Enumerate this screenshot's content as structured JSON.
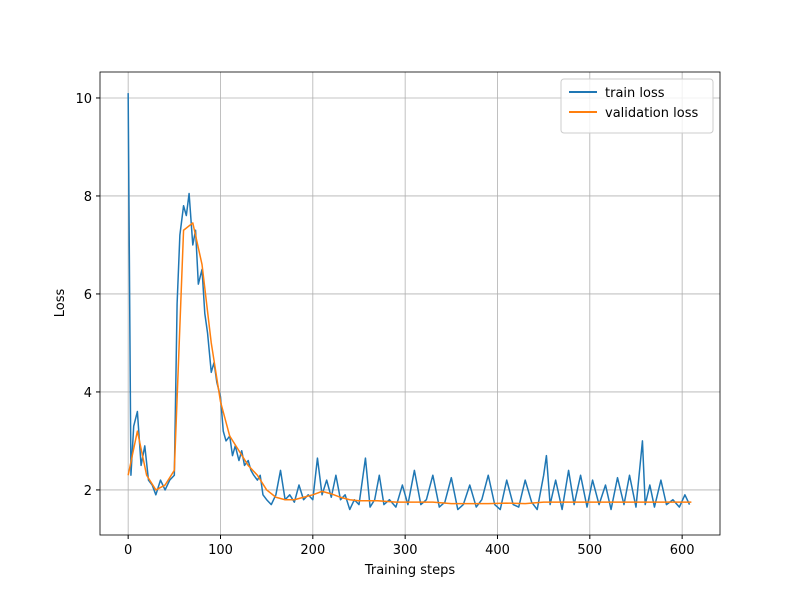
{
  "chart_data": {
    "type": "line",
    "xlabel": "Training steps",
    "ylabel": "Loss",
    "xlim": [
      -30.5,
      641
    ],
    "ylim": [
      1.08,
      10.53
    ],
    "xticks": [
      0,
      100,
      200,
      300,
      400,
      500,
      600
    ],
    "yticks": [
      2,
      4,
      6,
      8,
      10
    ],
    "grid": true,
    "legend": "upper right",
    "series": [
      {
        "name": "train loss",
        "color": "#1f77b4",
        "x": [
          0,
          3,
          6,
          10,
          14,
          18,
          22,
          26,
          30,
          35,
          40,
          45,
          50,
          53,
          56,
          60,
          63,
          66,
          70,
          73,
          76,
          80,
          83,
          86,
          90,
          93,
          96,
          100,
          103,
          106,
          110,
          113,
          116,
          120,
          123,
          126,
          130,
          133,
          136,
          140,
          143,
          146,
          150,
          155,
          160,
          165,
          170,
          175,
          180,
          185,
          190,
          195,
          200,
          205,
          210,
          215,
          220,
          225,
          230,
          235,
          240,
          245,
          250,
          257,
          262,
          267,
          272,
          277,
          283,
          290,
          297,
          303,
          310,
          317,
          323,
          330,
          337,
          343,
          350,
          357,
          363,
          370,
          377,
          383,
          390,
          397,
          403,
          410,
          417,
          423,
          430,
          437,
          443,
          450,
          453,
          457,
          463,
          470,
          477,
          483,
          490,
          497,
          503,
          510,
          517,
          523,
          530,
          537,
          543,
          550,
          557,
          560,
          565,
          570,
          577,
          583,
          590,
          597,
          603,
          608
        ],
        "values": [
          10.1,
          2.3,
          3.3,
          3.6,
          2.5,
          2.9,
          2.2,
          2.1,
          1.9,
          2.2,
          2.0,
          2.2,
          2.3,
          5.8,
          7.2,
          7.8,
          7.6,
          8.05,
          7.0,
          7.3,
          6.2,
          6.5,
          5.6,
          5.2,
          4.4,
          4.6,
          4.2,
          3.9,
          3.2,
          3.0,
          3.1,
          2.7,
          2.9,
          2.6,
          2.8,
          2.5,
          2.6,
          2.4,
          2.3,
          2.2,
          2.3,
          1.9,
          1.8,
          1.7,
          1.9,
          2.4,
          1.8,
          1.9,
          1.75,
          2.1,
          1.8,
          1.9,
          1.8,
          2.65,
          1.9,
          2.2,
          1.85,
          2.3,
          1.8,
          1.9,
          1.6,
          1.8,
          1.7,
          2.65,
          1.65,
          1.8,
          2.3,
          1.7,
          1.8,
          1.65,
          2.1,
          1.7,
          2.4,
          1.7,
          1.8,
          2.3,
          1.65,
          1.75,
          2.25,
          1.6,
          1.7,
          2.1,
          1.65,
          1.8,
          2.3,
          1.7,
          1.6,
          2.2,
          1.7,
          1.65,
          2.2,
          1.75,
          1.6,
          2.3,
          2.7,
          1.7,
          2.2,
          1.6,
          2.4,
          1.7,
          2.3,
          1.65,
          2.2,
          1.7,
          2.1,
          1.6,
          2.25,
          1.7,
          2.3,
          1.65,
          3.0,
          1.7,
          2.1,
          1.65,
          2.2,
          1.7,
          1.8,
          1.65,
          1.9,
          1.7
        ]
      },
      {
        "name": "validation loss",
        "color": "#ff7f0e",
        "x": [
          0,
          10,
          20,
          30,
          40,
          50,
          60,
          70,
          80,
          90,
          100,
          110,
          120,
          130,
          140,
          150,
          160,
          170,
          180,
          190,
          200,
          210,
          220,
          230,
          240,
          250,
          270,
          290,
          310,
          330,
          350,
          370,
          390,
          410,
          430,
          450,
          470,
          490,
          510,
          530,
          550,
          570,
          590,
          610
        ],
        "values": [
          2.3,
          3.2,
          2.3,
          2.0,
          2.1,
          2.4,
          7.3,
          7.45,
          6.6,
          5.0,
          3.8,
          3.1,
          2.8,
          2.5,
          2.3,
          2.0,
          1.85,
          1.8,
          1.8,
          1.85,
          1.9,
          1.97,
          1.92,
          1.85,
          1.8,
          1.78,
          1.78,
          1.75,
          1.75,
          1.75,
          1.72,
          1.72,
          1.72,
          1.73,
          1.72,
          1.75,
          1.75,
          1.75,
          1.75,
          1.75,
          1.75,
          1.75,
          1.75,
          1.75
        ]
      }
    ]
  }
}
